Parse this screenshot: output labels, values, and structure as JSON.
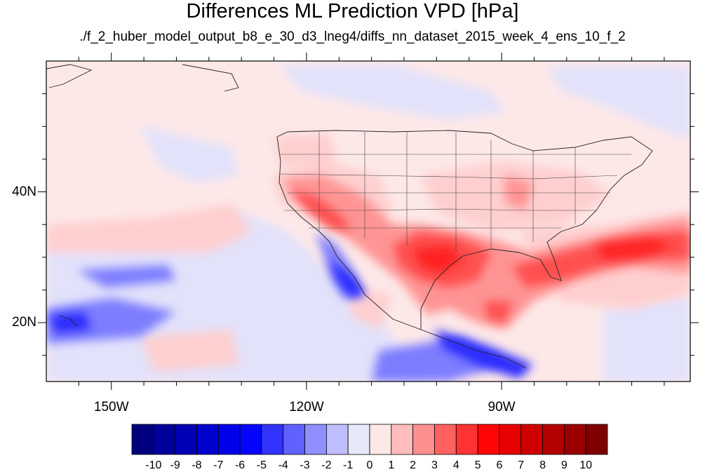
{
  "title": "Differences ML Prediction VPD [hPa]",
  "subtitle": "./f_2_huber_model_output_b8_e_30_d3_lneg4/diffs_nn_dataset_2015_week_4_ens_10_f_2",
  "map": {
    "lon_range": [
      -160,
      -61
    ],
    "lat_range": [
      11,
      60
    ],
    "lat_labels": [
      {
        "lat": 40,
        "text": "40N"
      },
      {
        "lat": 20,
        "text": "20N"
      }
    ],
    "lon_labels": [
      {
        "lon": -150,
        "text": "150W"
      },
      {
        "lon": -120,
        "text": "120W"
      },
      {
        "lon": -90,
        "text": "90W"
      }
    ]
  },
  "colorbar": {
    "labels": [
      "-10",
      "-9",
      "-8",
      "-7",
      "-6",
      "-5",
      "-4",
      "-3",
      "-2",
      "-1",
      "0",
      "1",
      "2",
      "3",
      "4",
      "5",
      "6",
      "7",
      "8",
      "9",
      "10"
    ],
    "colors": [
      "#00007f",
      "#00009a",
      "#0000b4",
      "#0000cf",
      "#0000e9",
      "#0505ff",
      "#3333ff",
      "#6161ff",
      "#8f8fff",
      "#bdbdff",
      "#e8e8fb",
      "#fde8e8",
      "#ffbdbd",
      "#ff8f8f",
      "#ff6161",
      "#ff3333",
      "#ff0505",
      "#e90000",
      "#cf0000",
      "#b40000",
      "#9a0000",
      "#7f0000"
    ]
  }
}
